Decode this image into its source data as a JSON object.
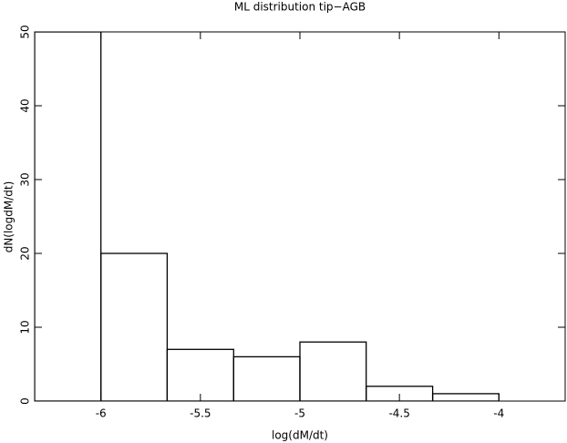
{
  "chart_data": {
    "type": "histogram",
    "title": "ML distribution tip−AGB",
    "xlabel": "log(dM/dt)",
    "ylabel": "dN(logdM/dt)",
    "bins": [
      -6.333,
      -6,
      -5.667,
      -5.333,
      -5,
      -4.667,
      -4.333,
      -4,
      -3.667
    ],
    "counts": [
      50,
      20,
      7,
      6,
      8,
      2,
      1,
      0
    ],
    "color": "#000000",
    "xlim": [
      -6.333,
      -3.667
    ],
    "ylim": [
      0,
      50
    ],
    "xticks": [
      -6,
      -5.5,
      -5,
      -4.5,
      -4
    ],
    "yticks": [
      0,
      10,
      20,
      30,
      40,
      50
    ]
  }
}
